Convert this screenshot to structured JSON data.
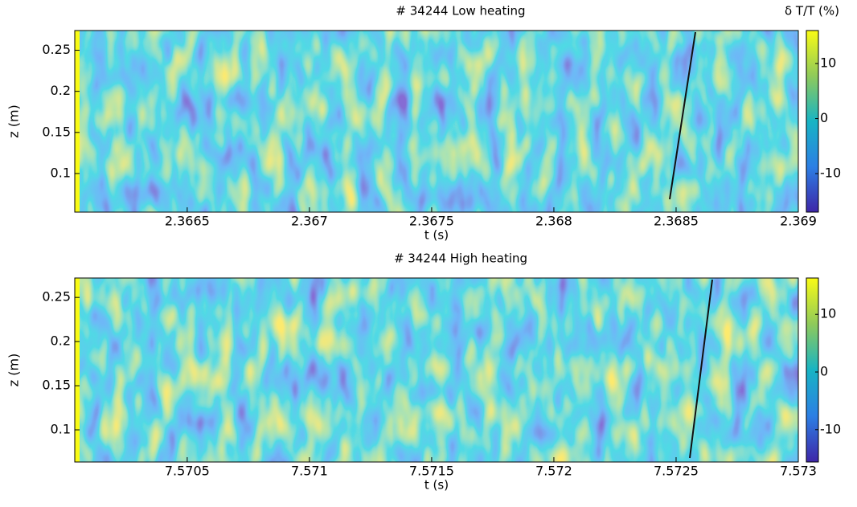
{
  "chart_data": [
    {
      "type": "heatmap",
      "title": "# 34244 Low heating",
      "x_label": "t (s)",
      "y_label": "z (m)",
      "colorbar_label": "δ T/T (%)",
      "xlim": [
        2.36604,
        2.369
      ],
      "xticks": [
        2.3665,
        2.367,
        2.3675,
        2.368,
        2.3685,
        2.369
      ],
      "ylim": [
        0.053,
        0.274
      ],
      "yticks": [
        0.1,
        0.15,
        0.2,
        0.25
      ],
      "clim": [
        -17,
        16
      ],
      "cticks": [
        -10,
        0,
        10
      ]
    },
    {
      "type": "heatmap",
      "title": "# 34244 High heating",
      "x_label": "t (s)",
      "y_label": "z (m)",
      "xlim": [
        7.57004,
        7.573
      ],
      "xticks": [
        7.5705,
        7.571,
        7.5715,
        7.572,
        7.5725,
        7.573
      ],
      "ylim": [
        0.0636,
        0.272
      ],
      "yticks": [
        0.1,
        0.15,
        0.2,
        0.25
      ],
      "clim": [
        -15.6,
        16.3
      ],
      "cticks": [
        -10,
        0,
        10
      ]
    }
  ]
}
